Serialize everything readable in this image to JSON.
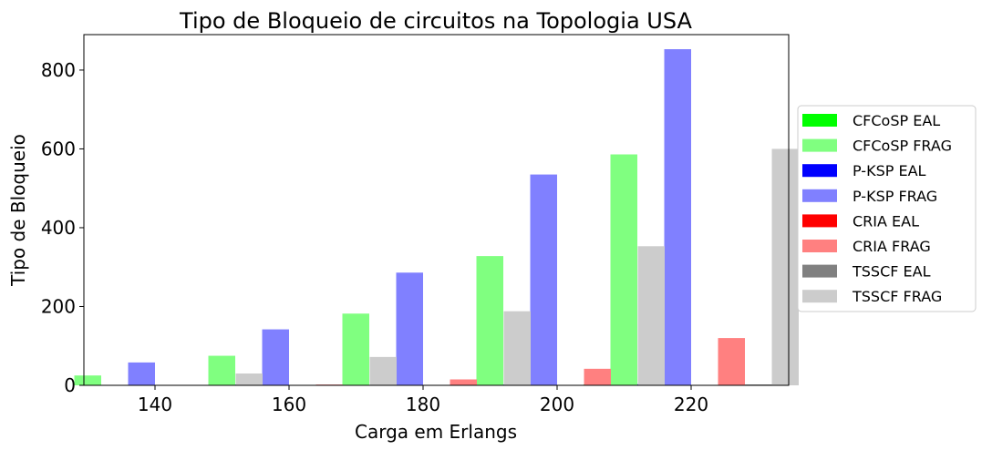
{
  "chart_data": {
    "type": "bar",
    "title": "Tipo de Bloqueio de circuitos na Topologia USA",
    "xlabel": "Carga em Erlangs",
    "ylabel": "Tipo de Bloqueio",
    "categories": [
      "140",
      "160",
      "180",
      "200",
      "220"
    ],
    "ylim": [
      0,
      890
    ],
    "yticks": [
      0,
      200,
      400,
      600,
      800
    ],
    "grid": false,
    "legend_position": "right-outside",
    "series": [
      {
        "name": "CFCoSP EAL",
        "color": "#00ff00",
        "values": [
          0,
          0,
          0,
          0,
          2
        ]
      },
      {
        "name": "CFCoSP FRAG",
        "color": "#80ff80",
        "values": [
          25,
          75,
          182,
          328,
          586
        ]
      },
      {
        "name": "P-KSP EAL",
        "color": "#0000ff",
        "values": [
          0,
          2,
          1,
          2,
          3
        ]
      },
      {
        "name": "P-KSP FRAG",
        "color": "#8080ff",
        "values": [
          58,
          142,
          286,
          535,
          853
        ]
      },
      {
        "name": "CRIA EAL",
        "color": "#ff0000",
        "values": [
          0,
          1,
          0,
          0,
          0
        ]
      },
      {
        "name": "CRIA FRAG",
        "color": "#ff8080",
        "values": [
          0,
          2,
          15,
          42,
          120
        ]
      },
      {
        "name": "TSSCF EAL",
        "color": "#808080",
        "values": [
          0,
          0,
          0,
          0,
          2
        ]
      },
      {
        "name": "TSSCF FRAG",
        "color": "#cccccc",
        "values": [
          30,
          72,
          188,
          353,
          600
        ]
      }
    ]
  }
}
